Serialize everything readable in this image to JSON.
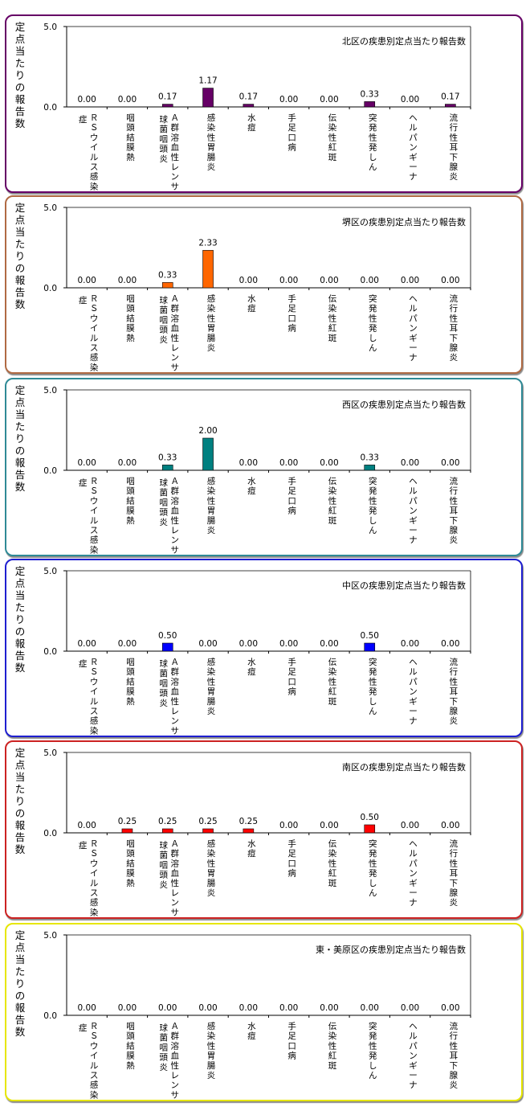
{
  "y_axis_label": "定点当たりの報告数",
  "categories": [
    [
      "ＲＳウイルス感染",
      "症"
    ],
    [
      "咽頭結膜熱"
    ],
    [
      "Ａ群溶血性レンサ",
      "球菌咽頭炎"
    ],
    [
      "感染性胃腸炎"
    ],
    [
      "水痘"
    ],
    [
      "手足口病"
    ],
    [
      "伝染性紅斑"
    ],
    [
      "突発性発しん"
    ],
    [
      "ヘルパンギーナ"
    ],
    [
      "流行性耳下腺炎"
    ]
  ],
  "chart_data": [
    {
      "type": "bar",
      "title": "北区の疾患別定点当たり報告数",
      "ylim": [
        0,
        5
      ],
      "yticks": [
        "5.0",
        "0.0"
      ],
      "color": "#660066",
      "border": "#660066",
      "values": [
        0.0,
        0.0,
        0.17,
        1.17,
        0.17,
        0.0,
        0.0,
        0.33,
        0.0,
        0.17
      ],
      "labels": [
        "0.00",
        "0.00",
        "0.17",
        "1.17",
        "0.17",
        "0.00",
        "0.00",
        "0.33",
        "0.00",
        "0.17"
      ]
    },
    {
      "type": "bar",
      "title": "堺区の疾患別定点当たり報告数",
      "ylim": [
        0,
        5
      ],
      "yticks": [
        "5.0",
        "0.0"
      ],
      "color": "#ff6600",
      "border": "#b06a43",
      "values": [
        0.0,
        0.0,
        0.33,
        2.33,
        0.0,
        0.0,
        0.0,
        0.0,
        0.0,
        0.0
      ],
      "labels": [
        "0.00",
        "0.00",
        "0.33",
        "2.33",
        "0.00",
        "0.00",
        "0.00",
        "0.00",
        "0.00",
        "0.00"
      ]
    },
    {
      "type": "bar",
      "title": "西区の疾患別定点当たり報告数",
      "ylim": [
        0,
        5
      ],
      "yticks": [
        "5.0",
        "0.0"
      ],
      "color": "#008080",
      "border": "#2f8a96",
      "values": [
        0.0,
        0.0,
        0.33,
        2.0,
        0.0,
        0.0,
        0.0,
        0.33,
        0.0,
        0.0
      ],
      "labels": [
        "0.00",
        "0.00",
        "0.33",
        "2.00",
        "0.00",
        "0.00",
        "0.00",
        "0.33",
        "0.00",
        "0.00"
      ]
    },
    {
      "type": "bar",
      "title": "中区の疾患別定点当たり報告数",
      "ylim": [
        0,
        5
      ],
      "yticks": [
        "5.0",
        "0.0"
      ],
      "color": "#0000ff",
      "border": "#1f1fd0",
      "values": [
        0.0,
        0.0,
        0.5,
        0.0,
        0.0,
        0.0,
        0.0,
        0.5,
        0.0,
        0.0
      ],
      "labels": [
        "0.00",
        "0.00",
        "0.50",
        "0.00",
        "0.00",
        "0.00",
        "0.00",
        "0.50",
        "0.00",
        "0.00"
      ]
    },
    {
      "type": "bar",
      "title": "南区の疾患別定点当たり報告数",
      "ylim": [
        0,
        5
      ],
      "yticks": [
        "5.0",
        "0.0"
      ],
      "color": "#ff0000",
      "border": "#cc2222",
      "values": [
        0.0,
        0.25,
        0.25,
        0.25,
        0.25,
        0.0,
        0.0,
        0.5,
        0.0,
        0.0
      ],
      "labels": [
        "0.00",
        "0.25",
        "0.25",
        "0.25",
        "0.25",
        "0.00",
        "0.00",
        "0.50",
        "0.00",
        "0.00"
      ]
    },
    {
      "type": "bar",
      "title": "東・美原区の疾患別定点当たり報告数",
      "ylim": [
        0,
        5
      ],
      "yticks": [
        "5.0",
        "0.0"
      ],
      "color": "#ffff00",
      "border": "#e6e600",
      "values": [
        0.0,
        0.0,
        0.0,
        0.0,
        0.0,
        0.0,
        0.0,
        0.0,
        0.0,
        0.0
      ],
      "labels": [
        "0.00",
        "0.00",
        "0.00",
        "0.00",
        "0.00",
        "0.00",
        "0.00",
        "0.00",
        "0.00",
        "0.00"
      ]
    }
  ]
}
